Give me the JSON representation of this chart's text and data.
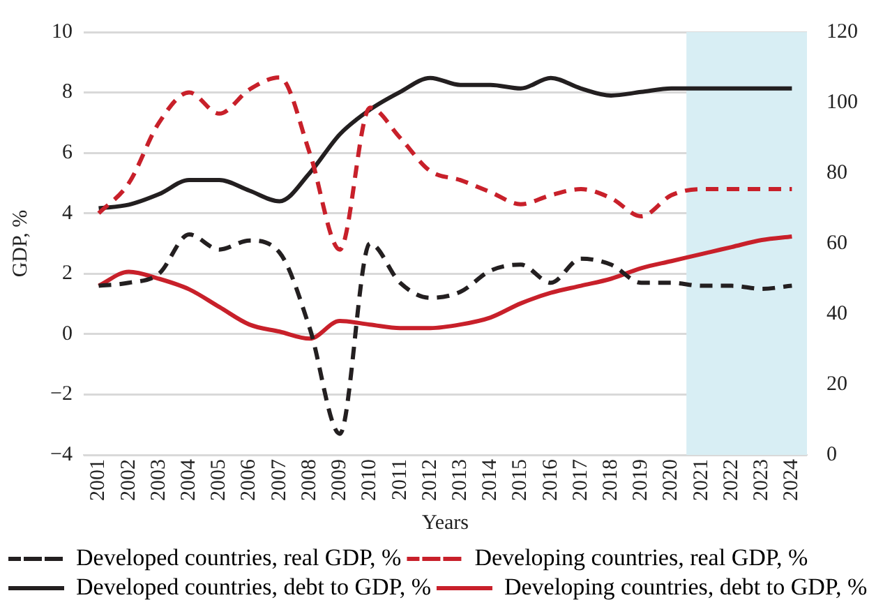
{
  "chart_data": {
    "type": "line",
    "xlabel": "Years",
    "ylabel": "GDP, %",
    "categories": [
      "2001",
      "2002",
      "2003",
      "2004",
      "2005",
      "2006",
      "2007",
      "2008",
      "2009",
      "2010",
      "2011",
      "2012",
      "2013",
      "2014",
      "2015",
      "2016",
      "2017",
      "2018",
      "2019",
      "2020",
      "2021",
      "2022",
      "2023",
      "2024"
    ],
    "series": [
      {
        "name": "Developed countries, real GDP, %",
        "color": "#231f20",
        "line_style": "dashed",
        "values": [
          1.6,
          1.7,
          2.0,
          3.3,
          2.8,
          3.1,
          2.7,
          0.2,
          -3.3,
          3.0,
          1.7,
          1.2,
          1.4,
          2.1,
          2.3,
          1.7,
          2.5,
          2.3,
          1.7,
          1.7,
          1.6,
          1.6,
          1.5,
          1.6
        ]
      },
      {
        "name": "Developing countries, real GDP, %",
        "color": "#c8202a",
        "line_style": "dashed",
        "values": [
          4.0,
          5.0,
          7.0,
          8.0,
          7.3,
          8.1,
          8.5,
          6.0,
          2.8,
          7.5,
          6.5,
          5.4,
          5.1,
          4.7,
          4.3,
          4.6,
          4.8,
          4.5,
          3.9,
          4.6,
          4.8,
          4.8,
          4.8,
          4.8
        ]
      },
      {
        "name": "Developed countries, debt to GDP, %",
        "color": "#231f20",
        "line_style": "solid",
        "axis": "y2",
        "values": [
          70,
          71,
          74,
          78,
          78,
          75,
          72,
          80,
          91,
          98,
          103,
          107,
          105,
          105,
          104,
          107,
          104,
          102,
          103,
          104,
          104,
          104,
          104,
          104
        ]
      },
      {
        "name": "Developing countries, debt to GDP, %",
        "color": "#c8202a",
        "line_style": "solid",
        "axis": "y2",
        "values": [
          48,
          52,
          50,
          47,
          42,
          37,
          35,
          33,
          38,
          37,
          36,
          36,
          37,
          39,
          43,
          46,
          48,
          50,
          53,
          55,
          57,
          59,
          61,
          62
        ]
      }
    ],
    "ylim": [
      -4,
      10
    ],
    "yticks": [
      {
        "value": -4,
        "label": "−4"
      },
      {
        "value": -2,
        "label": "−2"
      },
      0,
      2,
      4,
      6,
      8,
      10
    ],
    "y2lim": [
      0,
      120
    ],
    "y2ticks": [
      0,
      20,
      40,
      60,
      80,
      100,
      120
    ],
    "bands": [
      {
        "axis": "x",
        "from": "2021",
        "to": "2024",
        "color": "#d8eef4"
      }
    ],
    "grid": "y",
    "legend": "bottom",
    "marker": "none"
  }
}
